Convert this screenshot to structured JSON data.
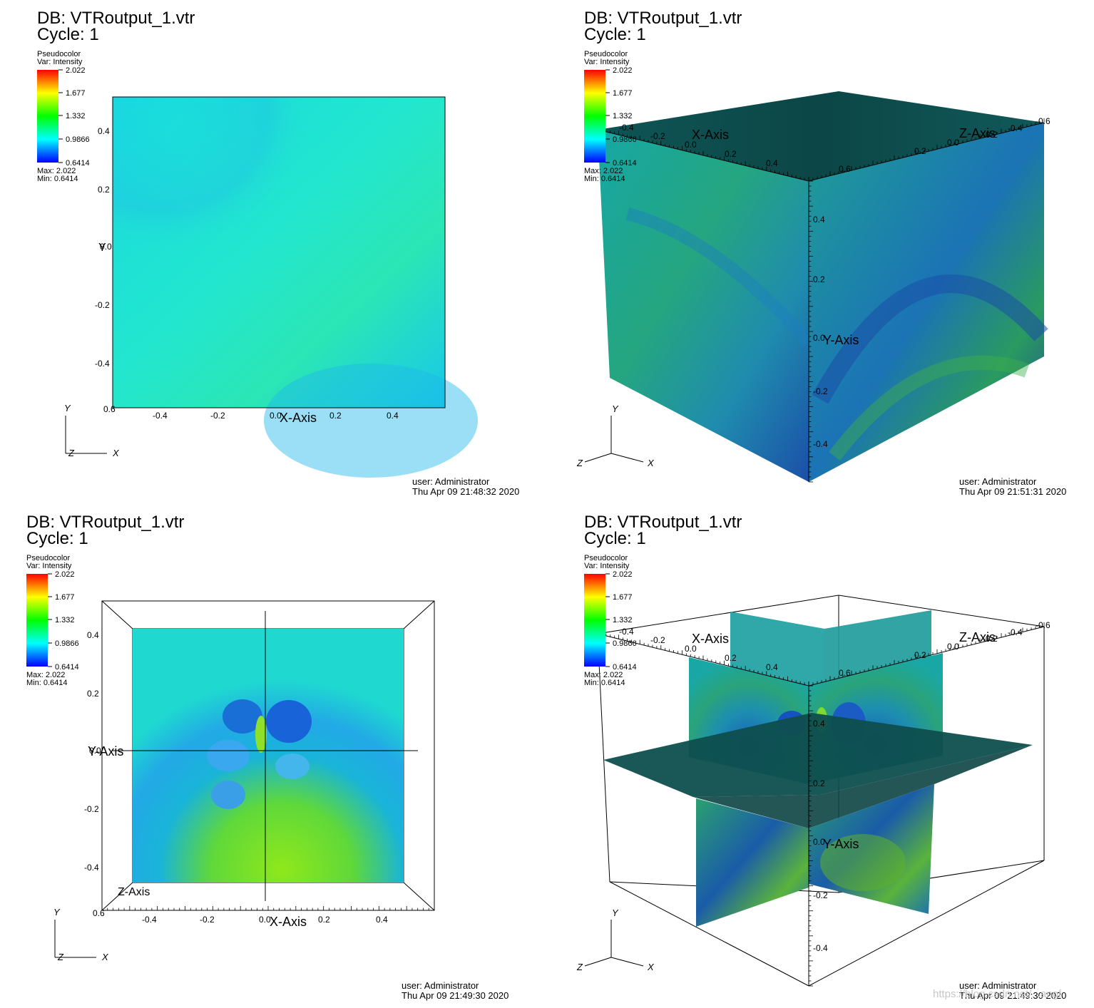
{
  "colors": {
    "legend_stops": [
      "#ff0000",
      "#ffff00",
      "#00ff00",
      "#00ffff",
      "#0000ff"
    ],
    "field_cyan": "#15e6e6",
    "field_green": "#4fd65a",
    "field_blue": "#1a6fd6",
    "box_dark": "#0d4d4d",
    "box_teal": "#1c9c95"
  },
  "panels": [
    {
      "db": "DB: VTRoutput_1.vtr",
      "cycle": "Cycle: 1",
      "legend": {
        "title": "Pseudocolor",
        "var": "Var: Intensity",
        "ticks": [
          "2.022",
          "1.677",
          "1.332",
          "0.9866",
          "0.6414"
        ],
        "max": "Max:  2.022",
        "min": "Min:  0.6414"
      },
      "axes": {
        "x_title": "X-Axis",
        "y_title": "Y",
        "x_ticks": [
          "-0.4",
          "-0.2",
          "0.0",
          "0.2",
          "0.4"
        ],
        "y_ticks": [
          "0.4",
          "0.2",
          "0.0",
          "-0.2",
          "-0.4"
        ],
        "origin": "0.6"
      },
      "triad": {
        "y": "Y",
        "z": "Z",
        "x": "X"
      },
      "user": "user: Administrator",
      "timestamp": "Thu Apr 09 21:48:32 2020"
    },
    {
      "db": "DB: VTRoutput_1.vtr",
      "cycle": "Cycle: 1",
      "legend": {
        "title": "Pseudocolor",
        "var": "Var: Intensity",
        "ticks": [
          "2.022",
          "1.677",
          "1.332",
          "0.9866",
          "0.6414"
        ],
        "max": "Max:  2.022",
        "min": "Min:  0.6414"
      },
      "axes": {
        "x_title": "X-Axis",
        "y_title": "Y-Axis",
        "z_title": "Z-Axis",
        "x_ticks": [
          "-0.2",
          "0.0",
          "0.2",
          "0.4",
          "0.6"
        ],
        "y_ticks": [
          "0.4",
          "0.2",
          "0.0",
          "-0.2",
          "-0.4"
        ],
        "z_ticks": [
          "0.2",
          "0.0",
          "-0.2",
          "-0.4",
          "-0.6"
        ],
        "x_first": "-0.4"
      },
      "triad": {
        "y": "Y",
        "z": "Z",
        "x": "X"
      },
      "user": "user: Administrator",
      "timestamp": "Thu Apr 09 21:51:31 2020"
    },
    {
      "db": "DB: VTRoutput_1.vtr",
      "cycle": "Cycle: 1",
      "legend": {
        "title": "Pseudocolor",
        "var": "Var: Intensity",
        "ticks": [
          "2.022",
          "1.677",
          "1.332",
          "0.9866",
          "0.6414"
        ],
        "max": "Max:  2.022",
        "min": "Min:  0.6414"
      },
      "axes": {
        "x_title": "X-Axis",
        "y_title": "Y-Axis",
        "z_title": "Z-Axis",
        "x_ticks": [
          "-0.4",
          "-0.2",
          "0.0",
          "0.2",
          "0.4"
        ],
        "y_ticks": [
          "0.4",
          "0.2",
          "0.0",
          "-0.2",
          "-0.4"
        ],
        "origin": "0.6"
      },
      "triad": {
        "y": "Y",
        "z": "Z",
        "x": "X"
      },
      "user": "user: Administrator",
      "timestamp": "Thu Apr 09 21:49:30 2020"
    },
    {
      "db": "DB: VTRoutput_1.vtr",
      "cycle": "Cycle: 1",
      "legend": {
        "title": "Pseudocolor",
        "var": "Var: Intensity",
        "ticks": [
          "2.022",
          "1.677",
          "1.332",
          "0.9866",
          "0.6414"
        ],
        "max": "Max:  2.022",
        "min": "Min:  0.6414"
      },
      "axes": {
        "x_title": "X-Axis",
        "y_title": "Y-Axis",
        "z_title": "Z-Axis",
        "x_ticks": [
          "-0.2",
          "0.0",
          "0.2",
          "0.4",
          "0.6"
        ],
        "y_ticks": [
          "0.4",
          "0.2",
          "0.0",
          "-0.2",
          "-0.4"
        ],
        "z_ticks": [
          "0.2",
          "0.0",
          "-0.2",
          "-0.4",
          "-0.6"
        ],
        "x_first": "-0.4"
      },
      "triad": {
        "y": "Y",
        "z": "Z",
        "x": "X"
      },
      "user": "user: Administrator",
      "timestamp": "Thu Apr 09 21:49:30 2020"
    }
  ],
  "watermark": "https://blog.csdn.net/...angf"
}
